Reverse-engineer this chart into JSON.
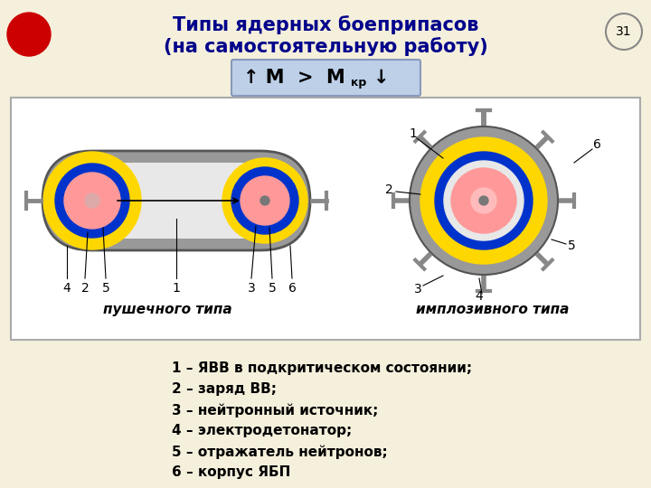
{
  "title_line1": "Типы ядерных боеприпасов",
  "title_line2": "(на самостоятельную работу)",
  "slide_number": "31",
  "bg_color": "#f5f0dc",
  "diagram_bg": "#ffffff",
  "diagram_border": "#aaaaaa",
  "title_color": "#00008B",
  "legend_items": [
    "1 – ЯВВ в подкритическом состоянии;",
    "2 – заряд ВВ;",
    "3 – нейтронный источник;",
    "4 – электродетонатор;",
    "5 – отражатель нейтронов;",
    "6 – корпус ЯБП"
  ],
  "label_left": "пушечного типа",
  "label_right": "имплозивного типа",
  "color_gray": "#999999",
  "color_gray_dark": "#666666",
  "color_yellow": "#FFD700",
  "color_blue": "#0033CC",
  "color_pink": "#FF9999",
  "color_pink_light": "#FFBBBB",
  "color_small_dot": "#777777",
  "red_circle_color": "#CC0000",
  "formula_bg": "#bdd0e8",
  "formula_border": "#8899bb",
  "white_inner": "#e8e8e8",
  "bolt_color": "#aaaaaa",
  "bolt_dark": "#888888"
}
